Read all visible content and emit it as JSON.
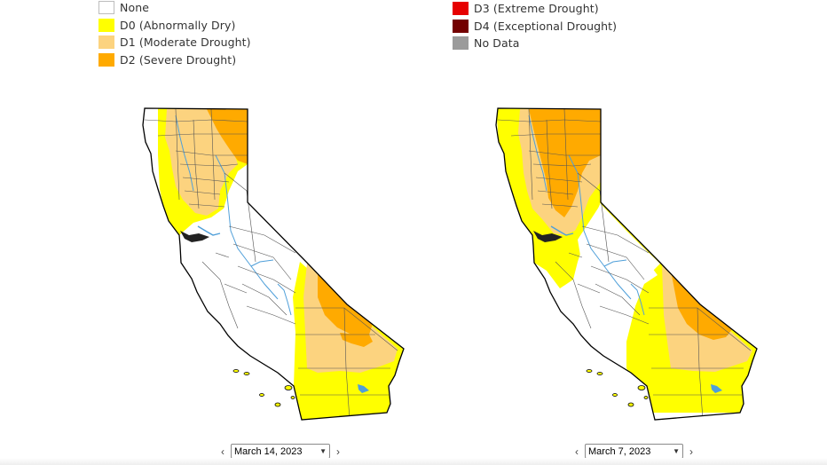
{
  "legend": {
    "left": [
      {
        "label": "None",
        "color": "#ffffff"
      },
      {
        "label": "D0 (Abnormally Dry)",
        "color": "#ffff00"
      },
      {
        "label": "D1 (Moderate Drought)",
        "color": "#fcd37f"
      },
      {
        "label": "D2 (Severe Drought)",
        "color": "#ffaa00"
      }
    ],
    "right": [
      {
        "label": "D3 (Extreme Drought)",
        "color": "#e60000"
      },
      {
        "label": "D4 (Exceptional Drought)",
        "color": "#730000"
      },
      {
        "label": "No Data",
        "color": "#9b9b9b"
      }
    ]
  },
  "colors": {
    "outline": "#000000",
    "county": "#555555",
    "water": "#4f9fd9",
    "d0": "#ffff00",
    "d1": "#fcd37f",
    "d2": "#ffaa00"
  },
  "maps": [
    {
      "date": "March 14, 2023",
      "prev_icon": "chevron-left-icon",
      "next_icon": "chevron-right-icon"
    },
    {
      "date": "March 7, 2023",
      "prev_icon": "chevron-left-icon",
      "next_icon": "chevron-right-icon"
    }
  ]
}
